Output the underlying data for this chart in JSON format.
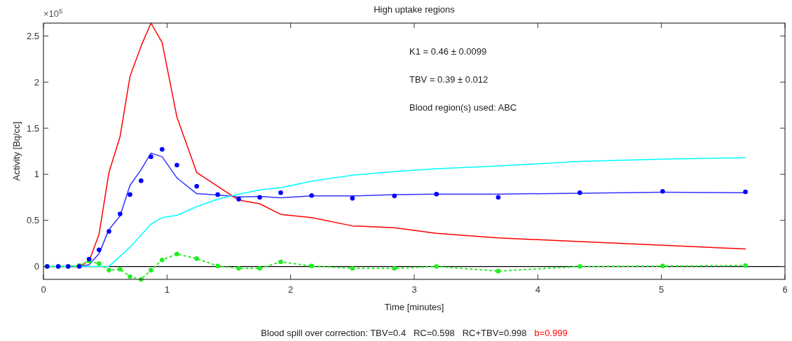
{
  "chart_data": {
    "type": "line",
    "title": "High uptake regions",
    "xlabel": "Time [minutes]",
    "ylabel": "Activity [Bq/cc]",
    "x": [
      0.03,
      0.12,
      0.2,
      0.29,
      0.37,
      0.45,
      0.53,
      0.62,
      0.7,
      0.79,
      0.87,
      0.96,
      1.08,
      1.24,
      1.41,
      1.58,
      1.75,
      1.92,
      2.17,
      2.5,
      2.84,
      3.18,
      3.68,
      4.34,
      5.01,
      5.68
    ],
    "series": [
      {
        "type": "scatter",
        "color": "#0000ff",
        "marker": "circle",
        "values": [
          0,
          0,
          0,
          0,
          0.08,
          0.18,
          0.38,
          0.57,
          0.78,
          0.93,
          1.19,
          1.27,
          1.1,
          0.87,
          0.78,
          0.73,
          0.75,
          0.8,
          0.77,
          0.74,
          0.765,
          0.785,
          0.75,
          0.8,
          0.815,
          0.81
        ]
      },
      {
        "type": "line",
        "color": "#3333ff",
        "values": [
          null,
          null,
          0,
          0,
          0.02,
          0.14,
          0.4,
          0.55,
          0.88,
          1.05,
          1.23,
          1.19,
          0.96,
          0.79,
          0.775,
          0.755,
          0.76,
          0.745,
          0.765,
          0.765,
          0.78,
          0.785,
          0.785,
          0.795,
          0.805,
          0.8
        ]
      },
      {
        "type": "line",
        "color": "#ff0000",
        "values": [
          null,
          null,
          0,
          0,
          0.06,
          0.35,
          1.02,
          1.41,
          2.06,
          2.39,
          2.64,
          2.43,
          1.62,
          1.02,
          0.87,
          0.72,
          0.68,
          0.565,
          0.53,
          0.44,
          0.42,
          0.36,
          0.31,
          0.27,
          0.23,
          0.19
        ]
      },
      {
        "type": "line",
        "color": "#00ffff",
        "values": [
          0,
          0,
          0,
          0,
          0,
          0,
          0.003,
          0.11,
          0.21,
          0.34,
          0.46,
          0.53,
          0.555,
          0.65,
          0.73,
          0.785,
          0.83,
          0.855,
          0.925,
          0.99,
          1.03,
          1.06,
          1.09,
          1.14,
          1.165,
          1.18
        ]
      },
      {
        "type": "line",
        "color": "#22ee22",
        "marker": "circle",
        "line_style": "dotted",
        "values": [
          0,
          0,
          0,
          0.01,
          0.06,
          0.03,
          -0.04,
          -0.03,
          -0.11,
          -0.14,
          -0.04,
          0.07,
          0.135,
          0.085,
          0.005,
          -0.02,
          -0.02,
          0.05,
          0.005,
          -0.02,
          -0.02,
          0,
          -0.05,
          0,
          0.005,
          0.01
        ]
      }
    ],
    "xlim": [
      0,
      6
    ],
    "xticks": [
      0,
      1,
      2,
      3,
      4,
      5,
      6
    ],
    "ylim": [
      -0.14,
      2.64
    ],
    "yticks": [
      0,
      0.5,
      1,
      1.5,
      2,
      2.5
    ],
    "ref_lines": [
      {
        "axis": "y",
        "value": 0,
        "color": "#000000"
      }
    ],
    "annotations": [
      "×10$^{5}$",
      "K1 = 0.46 ± 0.0099",
      "TBV = 0.39 ± 0.012",
      "Blood region(s) used: ABC",
      "Blood spill over correction: TBV=0.4   RC=0.598   RC+TBV=0.998",
      "b=0.999"
    ]
  }
}
